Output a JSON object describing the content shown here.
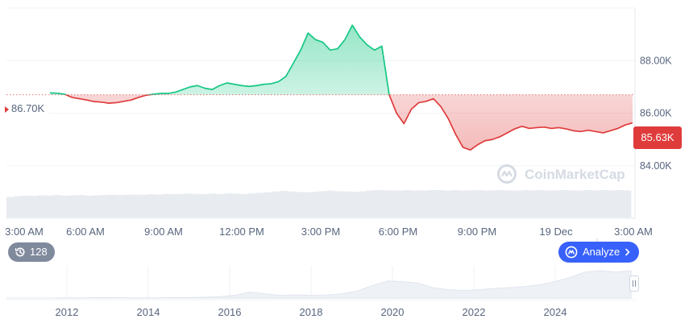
{
  "chart_data": [
    {
      "type": "area",
      "title": "",
      "xlabel": "",
      "ylabel": "",
      "x_ticks": [
        "3:00 AM",
        "6:00 AM",
        "9:00 AM",
        "12:00 PM",
        "3:00 PM",
        "6:00 PM",
        "9:00 PM",
        "19 Dec",
        "3:00 AM"
      ],
      "y_ticks": [
        "84.00K",
        "86.00K",
        "88.00K"
      ],
      "ylim": [
        82.0,
        90.0
      ],
      "baseline": 86.7,
      "baseline_label": "86.70K",
      "current_value": 85.63,
      "current_label": "85.63K",
      "grid": true,
      "colors": {
        "above": "#16c784",
        "below": "#e03b3b"
      },
      "series": [
        {
          "values": [
            86.77,
            86.76,
            86.72,
            86.6,
            86.55,
            86.5,
            86.44,
            86.42,
            86.38,
            86.4,
            86.45,
            86.5,
            86.6,
            86.68,
            86.72,
            86.75,
            86.75,
            86.8,
            86.9,
            87.0,
            87.05,
            86.95,
            86.9,
            87.05,
            87.15,
            87.1,
            87.05,
            87.02,
            87.05,
            87.1,
            87.12,
            87.2,
            87.4,
            87.9,
            88.4,
            89.05,
            88.8,
            88.7,
            88.4,
            88.45,
            88.8,
            89.35,
            88.9,
            88.6,
            88.4,
            88.55,
            86.7,
            86.0,
            85.6,
            86.15,
            86.4,
            86.45,
            86.55,
            86.25,
            85.8,
            85.2,
            84.7,
            84.6,
            84.8,
            84.95,
            85.0,
            85.1,
            85.25,
            85.4,
            85.5,
            85.42,
            85.45,
            85.47,
            85.42,
            85.45,
            85.4,
            85.33,
            85.3,
            85.35,
            85.3,
            85.25,
            85.33,
            85.42,
            85.55,
            85.63
          ]
        }
      ],
      "volume_relative": [
        0.75,
        0.78,
        0.8,
        0.79,
        0.81,
        0.8,
        0.82,
        0.8,
        0.81,
        0.82,
        0.8,
        0.81,
        0.82,
        0.83,
        0.82,
        0.83,
        0.84,
        0.83,
        0.85,
        0.84,
        0.86,
        0.85,
        0.86,
        0.87,
        0.86,
        0.85,
        0.87,
        0.86,
        0.88,
        0.87,
        0.86,
        0.88,
        0.9,
        0.92,
        0.95,
        0.97,
        0.95,
        0.93,
        0.92,
        0.94,
        0.96,
        0.98,
        0.96,
        0.95,
        0.94,
        0.95,
        0.98,
        1.0,
        0.99,
        0.98,
        0.99,
        1.0,
        0.98,
        0.99,
        1.0,
        1.0,
        0.99,
        1.0,
        0.98,
        0.99,
        1.0,
        0.98,
        0.99,
        1.0,
        0.99,
        0.98,
        1.0,
        0.99,
        1.0,
        0.98,
        0.99,
        1.0,
        0.99,
        0.98,
        1.0,
        0.99,
        1.0,
        0.99,
        1.0,
        0.99
      ]
    },
    {
      "type": "area",
      "title": "",
      "x_ticks": [
        "2012",
        "2014",
        "2016",
        "2018",
        "2020",
        "2022",
        "2024"
      ],
      "values_relative": [
        0.0,
        0.0,
        0.0,
        0.0,
        0.01,
        0.01,
        0.02,
        0.02,
        0.01,
        0.01,
        0.01,
        0.02,
        0.02,
        0.03,
        0.05,
        0.1,
        0.22,
        0.15,
        0.1,
        0.12,
        0.1,
        0.11,
        0.15,
        0.25,
        0.45,
        0.62,
        0.6,
        0.55,
        0.38,
        0.3,
        0.28,
        0.3,
        0.35,
        0.38,
        0.42,
        0.48,
        0.6,
        0.75,
        0.95,
        1.0,
        0.95,
        1.0
      ]
    }
  ],
  "controls": {
    "events_count": "128",
    "analyze_label": "Analyze"
  },
  "watermark": {
    "brand": "CoinMarketCap"
  },
  "icons": {
    "events": "history-clock-icon",
    "analyze": "ai-sparkle-icon",
    "analyze_arrow": "chevron-right-icon",
    "watermark": "coinmarketcap-logo-icon"
  }
}
